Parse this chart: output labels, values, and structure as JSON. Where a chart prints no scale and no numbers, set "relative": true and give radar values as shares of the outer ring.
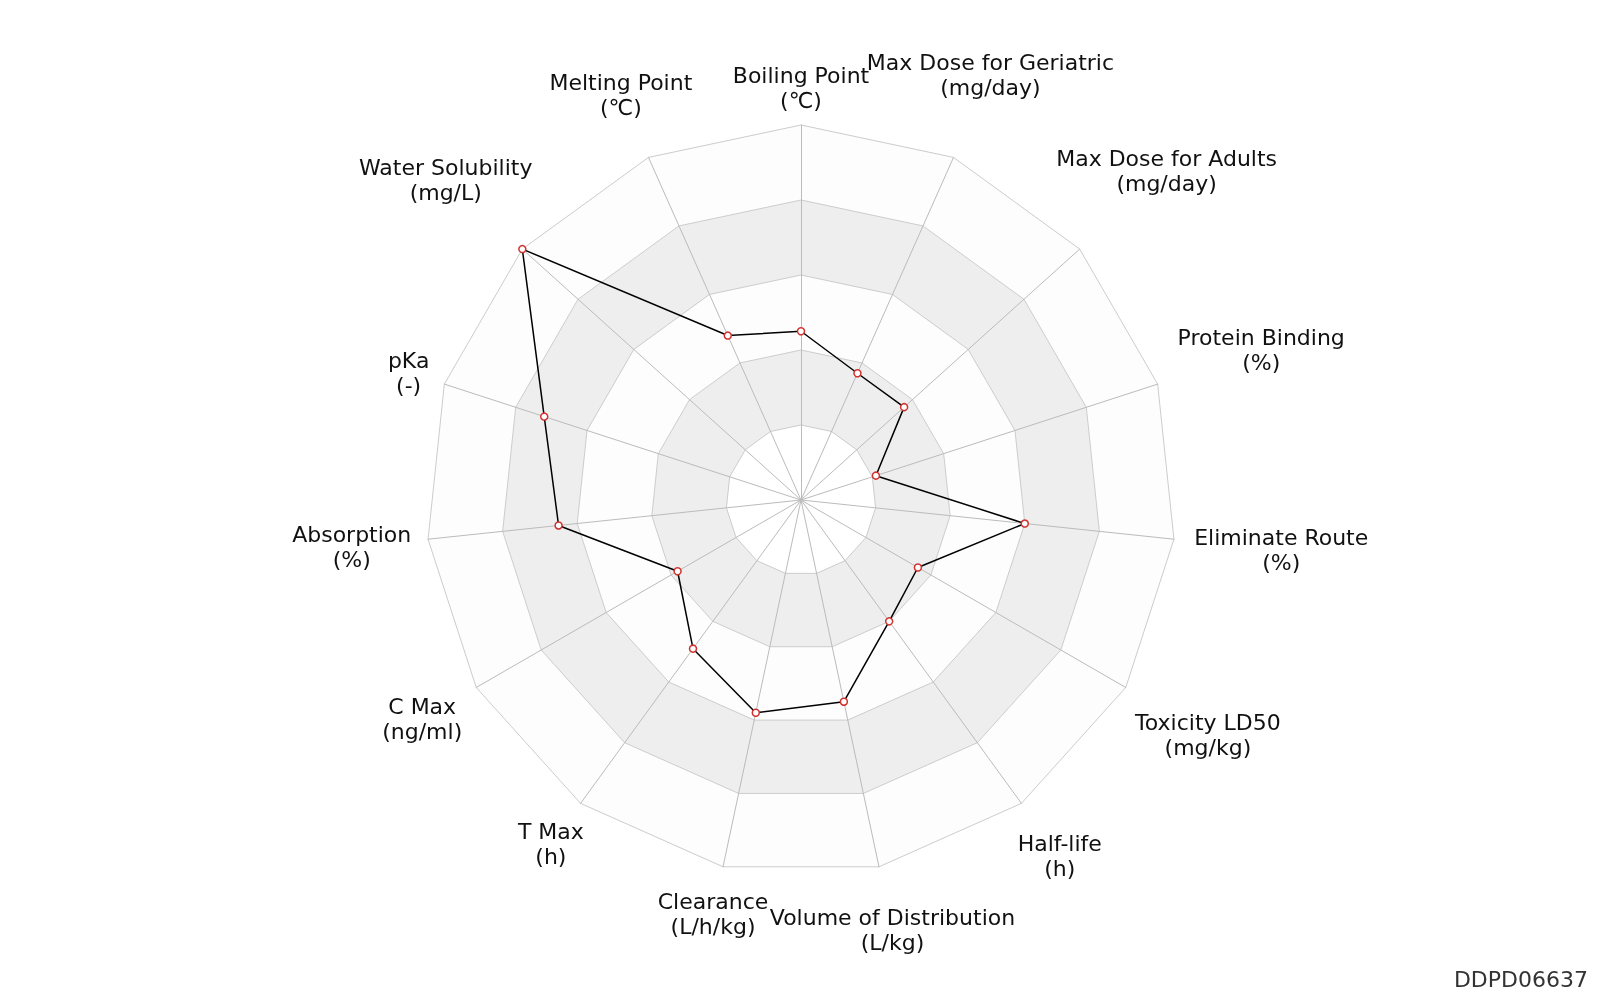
{
  "chart_data": {
    "type": "radar",
    "relative": true,
    "marker": "circle",
    "categories": [
      "Boiling Point\n(℃)",
      "Max Dose for Geriatric\n(mg/day)",
      "Max Dose for Adults\n(mg/day)",
      "Protein Binding\n(%)",
      "Eliminate Route\n(%)",
      "Toxicity LD50\n(mg/kg)",
      "Half-life\n(h)",
      "Volume of Distribution\n(L/kg)",
      "Clearance\n(L/h/kg)",
      "T Max\n(h)",
      "C Max\n(ng/ml)",
      "Absorption\n(%)",
      "pKa\n(-)",
      "Water Solubility\n(mg/L)",
      "Melting Point\n(℃)"
    ],
    "series": [
      {
        "color": "#000000",
        "values": [
          0.45,
          0.37,
          0.37,
          0.21,
          0.6,
          0.36,
          0.4,
          0.55,
          0.58,
          0.49,
          0.38,
          0.65,
          0.72,
          1.0,
          0.48
        ]
      }
    ],
    "annotations": [
      "DDPD06637"
    ]
  }
}
